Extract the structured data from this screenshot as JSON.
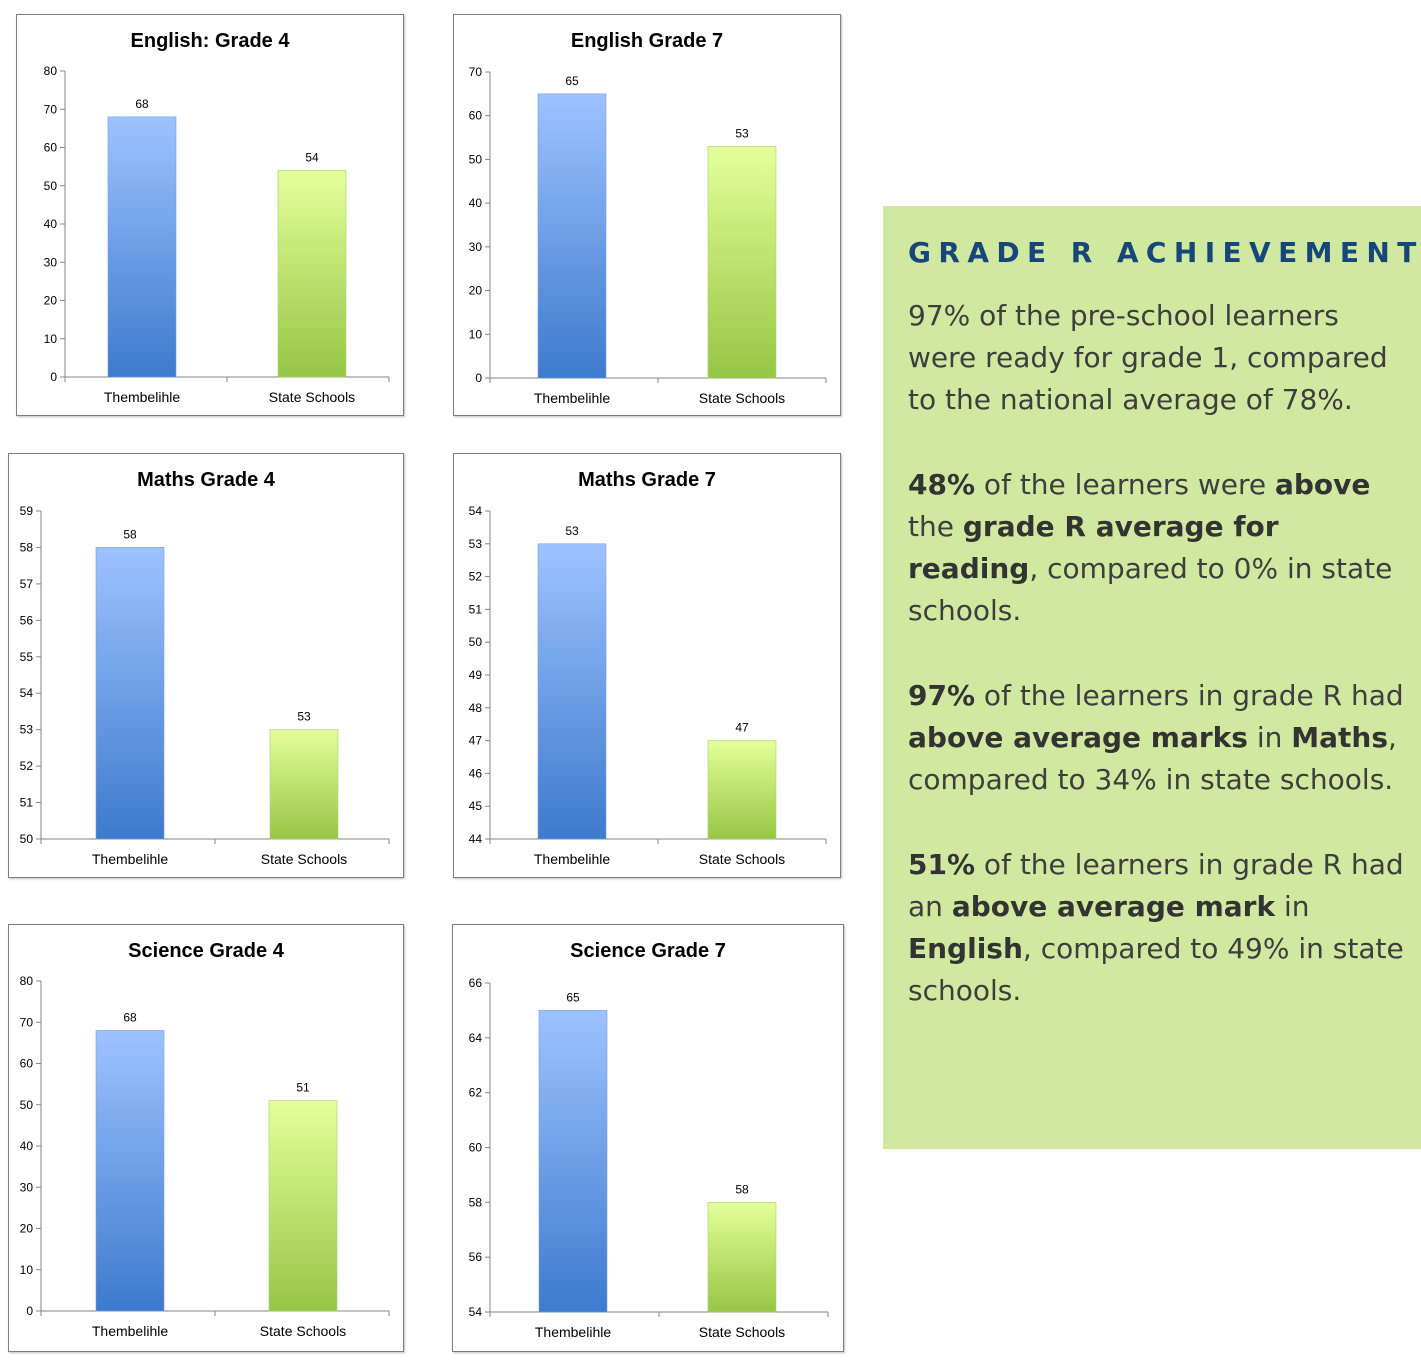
{
  "chart_data": [
    {
      "type": "bar",
      "title": "English: Grade 4",
      "categories": [
        "Thembelihle",
        "State Schools"
      ],
      "values": [
        68,
        54
      ],
      "ylim": [
        0,
        80
      ],
      "yticks": [
        0,
        10,
        20,
        30,
        40,
        50,
        60,
        70,
        80
      ],
      "xlabel": "",
      "ylabel": "",
      "legend": "none",
      "grid": false,
      "colors": [
        "#4a86d6",
        "#9bc94c"
      ]
    },
    {
      "type": "bar",
      "title": "English Grade 7",
      "categories": [
        "Thembelihle",
        "State Schools"
      ],
      "values": [
        65,
        53
      ],
      "ylim": [
        0,
        70
      ],
      "yticks": [
        0,
        10,
        20,
        30,
        40,
        50,
        60,
        70
      ],
      "xlabel": "",
      "ylabel": "",
      "legend": "none",
      "grid": false,
      "colors": [
        "#4a86d6",
        "#9bc94c"
      ]
    },
    {
      "type": "bar",
      "title": "Maths Grade 4",
      "categories": [
        "Thembelihle",
        "State Schools"
      ],
      "values": [
        58,
        53
      ],
      "ylim": [
        50,
        59
      ],
      "yticks": [
        50,
        51,
        52,
        53,
        54,
        55,
        56,
        57,
        58,
        59
      ],
      "xlabel": "",
      "ylabel": "",
      "legend": "none",
      "grid": false,
      "colors": [
        "#4a86d6",
        "#9bc94c"
      ]
    },
    {
      "type": "bar",
      "title": "Maths Grade 7",
      "categories": [
        "Thembelihle",
        "State Schools"
      ],
      "values": [
        53,
        47
      ],
      "ylim": [
        44,
        54
      ],
      "yticks": [
        44,
        45,
        46,
        47,
        48,
        49,
        50,
        51,
        52,
        53,
        54
      ],
      "xlabel": "",
      "ylabel": "",
      "legend": "none",
      "grid": false,
      "colors": [
        "#4a86d6",
        "#9bc94c"
      ]
    },
    {
      "type": "bar",
      "title": "Science Grade 4",
      "categories": [
        "Thembelihle",
        "State Schools"
      ],
      "values": [
        68,
        51
      ],
      "ylim": [
        0,
        80
      ],
      "yticks": [
        0,
        10,
        20,
        30,
        40,
        50,
        60,
        70,
        80
      ],
      "xlabel": "",
      "ylabel": "",
      "legend": "none",
      "grid": false,
      "colors": [
        "#4a86d6",
        "#9bc94c"
      ]
    },
    {
      "type": "bar",
      "title": "Science Grade 7",
      "categories": [
        "Thembelihle",
        "State Schools"
      ],
      "values": [
        65,
        58
      ],
      "ylim": [
        54,
        66
      ],
      "yticks": [
        54,
        56,
        58,
        60,
        62,
        64,
        66
      ],
      "xlabel": "",
      "ylabel": "",
      "legend": "none",
      "grid": false,
      "colors": [
        "#4a86d6",
        "#9bc94c"
      ]
    }
  ],
  "panel": {
    "heading": "GRADE R ACHIEVEMENTS",
    "background": "#d1e8a0",
    "heading_color": "#16467a",
    "paragraphs": [
      [
        {
          "t": "97% of the pre-school learners were ready for grade 1, compared to the national average of 78%.",
          "b": false
        }
      ],
      [
        {
          "t": "48%",
          "b": true
        },
        {
          "t": " of the learners were ",
          "b": false
        },
        {
          "t": "above",
          "b": true
        },
        {
          "t": " the ",
          "b": false
        },
        {
          "t": "grade R average for reading",
          "b": true
        },
        {
          "t": ", compared to 0% in state schools.",
          "b": false
        }
      ],
      [
        {
          "t": "97%",
          "b": true
        },
        {
          "t": " of the learners in grade R had ",
          "b": false
        },
        {
          "t": "above average marks",
          "b": true
        },
        {
          "t": " in ",
          "b": false
        },
        {
          "t": "Maths",
          "b": true
        },
        {
          "t": ", compared to 34% in state schools.",
          "b": false
        }
      ],
      [
        {
          "t": "51%",
          "b": true
        },
        {
          "t": " of the learners in grade R had an ",
          "b": false
        },
        {
          "t": "above average mark",
          "b": true
        },
        {
          "t": " in ",
          "b": false
        },
        {
          "t": "English",
          "b": true
        },
        {
          "t": ", compared to 49% in state schools.",
          "b": false
        }
      ]
    ]
  }
}
